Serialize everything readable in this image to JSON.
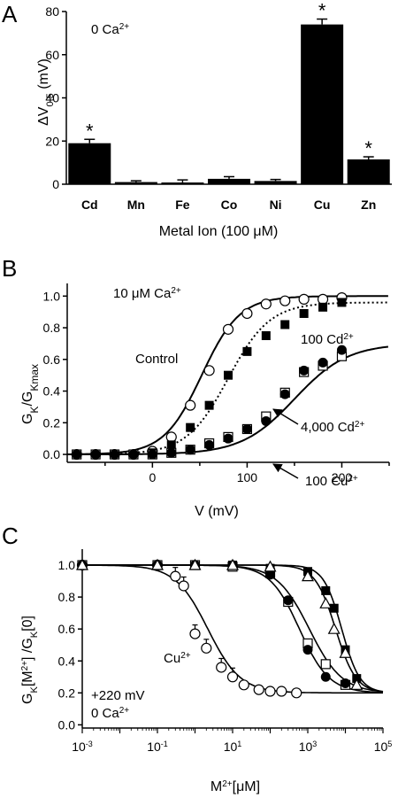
{
  "chart_data": [
    {
      "panel": "A",
      "type": "bar",
      "ylabel_main": "ΔV",
      "ylabel_sub": "0.5",
      "ylabel_unit": " (mV)",
      "xlabel": "Metal Ion (100 μM)",
      "condition_main": "0 Ca",
      "condition_sup": "2+",
      "ylim": [
        0,
        80
      ],
      "yticks": [
        "0",
        "20",
        "40",
        "60",
        "80"
      ],
      "categories": [
        "Cd",
        "Mn",
        "Fe",
        "Co",
        "Ni",
        "Cu",
        "Zn"
      ],
      "values": [
        19,
        1,
        0.8,
        2.5,
        1.5,
        74,
        11.5
      ],
      "errors": [
        1.8,
        0.6,
        1.2,
        1.0,
        0.7,
        2.5,
        1.2
      ],
      "significance": [
        "*",
        "",
        "",
        "",
        "",
        "*",
        "*"
      ]
    },
    {
      "panel": "B",
      "type": "scatter",
      "xlabel": "V (mV)",
      "ylabel_main": "G",
      "ylabel_sub1": "K",
      "ylabel_mid": "/G",
      "ylabel_sub2": "Kmax",
      "xlim": [
        -90,
        250
      ],
      "ylim": [
        -0.05,
        1.08
      ],
      "xticks": [
        "0",
        "100",
        "200"
      ],
      "yticks": [
        "0.0",
        "0.2",
        "0.4",
        "0.6",
        "0.8",
        "1.0"
      ],
      "condition_main": "10 μM Ca",
      "condition_sup": "2+",
      "labels": [
        {
          "main": "Control",
          "sup": ""
        },
        {
          "main": "100 Cd",
          "sup": "2+"
        },
        {
          "main": "4,000 Cd",
          "sup": "2+"
        },
        {
          "main": "100 Cu",
          "sup": "2+"
        }
      ],
      "series": [
        {
          "marker": "open-circle",
          "x": [
            -80,
            -60,
            -40,
            -20,
            0,
            20,
            40,
            60,
            80,
            100,
            120,
            140,
            160,
            180,
            200
          ],
          "y": [
            0.0,
            0.0,
            0.0,
            0.0,
            0.02,
            0.11,
            0.31,
            0.53,
            0.79,
            0.89,
            0.95,
            0.97,
            0.98,
            0.98,
            0.99
          ]
        },
        {
          "marker": "filled-square",
          "x": [
            -80,
            -60,
            -40,
            -20,
            0,
            20,
            40,
            60,
            80,
            100,
            120,
            140,
            160,
            180,
            200
          ],
          "y": [
            0.0,
            0.0,
            0.0,
            0.0,
            0.01,
            0.06,
            0.17,
            0.31,
            0.5,
            0.65,
            0.75,
            0.82,
            0.89,
            0.93,
            0.96
          ]
        },
        {
          "marker": "open-square",
          "x": [
            -80,
            -60,
            -40,
            -20,
            0,
            20,
            40,
            60,
            80,
            100,
            120,
            140,
            160,
            180,
            200
          ],
          "y": [
            0.0,
            0.0,
            0.0,
            0.0,
            0.0,
            0.01,
            0.03,
            0.07,
            0.11,
            0.16,
            0.24,
            0.39,
            0.52,
            0.56,
            0.62
          ]
        },
        {
          "marker": "filled-circle",
          "x": [
            -80,
            -60,
            -40,
            -20,
            0,
            20,
            40,
            60,
            80,
            100,
            120,
            140,
            160,
            180,
            200
          ],
          "y": [
            0.0,
            0.0,
            0.0,
            0.0,
            0.0,
            0.01,
            0.03,
            0.06,
            0.1,
            0.16,
            0.21,
            0.38,
            0.53,
            0.58,
            0.66
          ]
        }
      ]
    },
    {
      "panel": "C",
      "type": "scatter",
      "x_scale": "log",
      "xlabel_main": "M",
      "xlabel_sup": "2+",
      "xlabel_tail": "[μM]",
      "ylabel_a": "G",
      "ylabel_b": "K",
      "ylabel_c": "[M",
      "ylabel_d": "2+",
      "ylabel_e": "] /G",
      "ylabel_f": "K",
      "ylabel_g": "[0]",
      "xlim": [
        0.001,
        100000
      ],
      "ylim": [
        -0.02,
        1.1
      ],
      "xticks": [
        {
          "base": "10",
          "exp": "-3"
        },
        {
          "base": "10",
          "exp": "-1"
        },
        {
          "base": "10",
          "exp": "1"
        },
        {
          "base": "10",
          "exp": "3"
        },
        {
          "base": "10",
          "exp": "5"
        }
      ],
      "yticks": [
        "0.0",
        "0.2",
        "0.4",
        "0.6",
        "0.8",
        "1.0"
      ],
      "condition_line1": "+220 mV",
      "condition_line2_main": "0 Ca",
      "condition_line2_sup": "2+",
      "label_cu_main": "Cu",
      "label_cu_sup": "2+",
      "series": [
        {
          "marker": "open-circle",
          "x": [
            0.001,
            0.1,
            0.3,
            0.5,
            1,
            2,
            5,
            10,
            20,
            50,
            100,
            200,
            500
          ],
          "y": [
            1.0,
            1.0,
            0.93,
            0.87,
            0.57,
            0.48,
            0.36,
            0.3,
            0.25,
            0.22,
            0.21,
            0.21,
            0.2
          ]
        },
        {
          "marker": "filled-square",
          "x": [
            0.001,
            0.1,
            1,
            10,
            100,
            1000,
            3000,
            5000,
            10000,
            20000
          ],
          "y": [
            1.0,
            1.0,
            1.0,
            1.0,
            0.98,
            0.96,
            0.84,
            0.73,
            0.47,
            0.29
          ]
        },
        {
          "marker": "open-square",
          "x": [
            0.001,
            0.1,
            1,
            10,
            100,
            300,
            1000,
            3000,
            10000
          ],
          "y": [
            1.0,
            1.0,
            1.0,
            0.99,
            0.95,
            0.77,
            0.51,
            0.38,
            0.25
          ]
        },
        {
          "marker": "filled-circle",
          "x": [
            0.001,
            0.1,
            1,
            10,
            100,
            300,
            1000,
            3000,
            10000
          ],
          "y": [
            1.0,
            1.0,
            1.0,
            1.0,
            0.94,
            0.78,
            0.47,
            0.3,
            0.26
          ]
        },
        {
          "marker": "open-triangle",
          "x": [
            0.001,
            0.1,
            1,
            10,
            100,
            1000,
            3000,
            5000,
            10000,
            20000
          ],
          "y": [
            1.0,
            1.0,
            1.0,
            1.0,
            0.99,
            0.93,
            0.76,
            0.6,
            0.45,
            0.25
          ]
        }
      ]
    }
  ]
}
